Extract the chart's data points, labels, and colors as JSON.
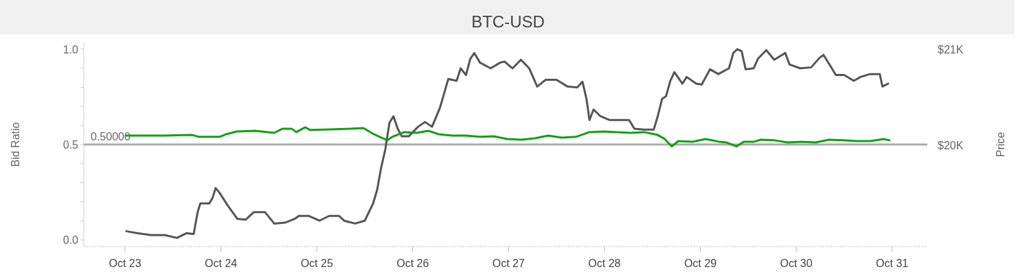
{
  "chart_data": {
    "type": "line",
    "title": "BTC-USD",
    "ylabel": "Bid Ratio",
    "y2label": "Price",
    "xlim": [
      "--10-22T13:40",
      "--10-31T08:50"
    ],
    "xticks": [
      {
        "value": "--10-23",
        "label": "Oct 23"
      },
      {
        "value": "--10-24",
        "label": "Oct 24"
      },
      {
        "value": "--10-25",
        "label": "Oct 25"
      },
      {
        "value": "--10-26",
        "label": "Oct 26"
      },
      {
        "value": "--10-27",
        "label": "Oct 27"
      },
      {
        "value": "--10-28",
        "label": "Oct 28"
      },
      {
        "value": "--10-29",
        "label": "Oct 29"
      },
      {
        "value": "--10-30",
        "label": "Oct 30"
      },
      {
        "value": "--10-31",
        "label": "Oct 31"
      }
    ],
    "ylim": [
      -0.035,
      1.035
    ],
    "yticks": [
      {
        "value": 0,
        "label": "0.0"
      },
      {
        "value": 0.1,
        "label": null
      },
      {
        "value": 0.2,
        "label": null
      },
      {
        "value": 0.3,
        "label": null
      },
      {
        "value": 0.4,
        "label": null
      },
      {
        "value": 0.5,
        "label": "0.5"
      },
      {
        "value": 0.6,
        "label": null
      },
      {
        "value": 0.7,
        "label": null
      },
      {
        "value": 0.8,
        "label": null
      },
      {
        "value": 0.9,
        "label": null
      },
      {
        "value": 1,
        "label": "1.0"
      }
    ],
    "y2lim": [
      18940,
      21070
    ],
    "y2ticks": [
      {
        "value": 20000,
        "label": "$20K"
      },
      {
        "value": 21000,
        "label": "$21K"
      }
    ],
    "ref_lines": [
      {
        "axis": "y",
        "value": 0.5,
        "label": "0.50000",
        "color": "#aaaaaa"
      }
    ],
    "series": [
      {
        "color": "#555555",
        "axis": "y2",
        "x": [
          "--10-23T00:20",
          "--10-23T03:05",
          "--10-23T06:30",
          "--10-23T09:55",
          "--10-23T13:00",
          "--10-23T15:25",
          "--10-23T17:10",
          "--10-23T18:10",
          "--10-23T18:50",
          "--10-23T21:05",
          "--10-23T21:55",
          "--10-23T22:40",
          "--10-23T23:40",
          "--10-24T01:40",
          "--10-24T04:05",
          "--10-24T06:10",
          "--10-24T08:15",
          "--10-24T11:00",
          "--10-24T13:20",
          "--10-24T16:05",
          "--10-24T18:30",
          "--10-24T19:30",
          "--10-24T21:55",
          "--10-25T00:40",
          "--10-25T03:05",
          "--10-25T05:30",
          "--10-25T06:50",
          "--10-25T09:35",
          "--10-25T12:00",
          "--10-25T14:05",
          "--10-25T15:05",
          "--10-25T16:05",
          "--10-25T17:10",
          "--10-25T18:10",
          "--10-25T19:10",
          "--10-25T20:15",
          "--10-25T21:15",
          "--10-25T23:00",
          "--10-26T01:20",
          "--10-26T03:05",
          "--10-26T04:50",
          "--10-26T06:50",
          "--10-26T08:55",
          "--10-26T11:00",
          "--10-26T12:00",
          "--10-26T13:20",
          "--10-26T14:25",
          "--10-26T15:25",
          "--10-26T16:50",
          "--10-26T19:30",
          "--10-26T21:55",
          "--10-26T23:00",
          "--10-27T01:00",
          "--10-27T03:05",
          "--10-27T05:10",
          "--10-27T07:10",
          "--10-27T09:15",
          "--10-27T12:00",
          "--10-27T14:45",
          "--10-27T17:10",
          "--10-27T18:30",
          "--10-27T19:30",
          "--10-27T20:15",
          "--10-27T21:15",
          "--10-27T23:00",
          "--10-28T01:20",
          "--10-28T04:05",
          "--10-28T06:10",
          "--10-28T07:30",
          "--10-28T09:55",
          "--10-28T12:20",
          "--10-28T13:20",
          "--10-28T14:25",
          "--10-28T15:25",
          "--10-28T16:30",
          "--10-28T17:30",
          "--10-28T19:30",
          "--10-28T20:35",
          "--10-28T23:00",
          "--10-29T00:20",
          "--10-29T02:25",
          "--10-29T04:30",
          "--10-29T07:10",
          "--10-29T08:15",
          "--10-29T09:15",
          "--10-29T10:20",
          "--10-29T11:20",
          "--10-29T13:20",
          "--10-29T14:25",
          "--10-29T16:30",
          "--10-29T18:30",
          "--10-29T21:15",
          "--10-29T22:20",
          "--10-30T01:00",
          "--10-30T03:45",
          "--10-30T05:50",
          "--10-30T06:50",
          "--10-30T08:55",
          "--10-30T09:55",
          "--10-30T12:00",
          "--10-30T14:25",
          "--10-30T16:05",
          "--10-30T18:30",
          "--10-30T20:55",
          "--10-30T21:35",
          "--10-30T23:00"
        ],
        "values": [
          19100,
          19080,
          19060,
          19060,
          19030,
          19080,
          19070,
          19300,
          19390,
          19390,
          19450,
          19550,
          19500,
          19370,
          19230,
          19220,
          19300,
          19300,
          19180,
          19190,
          19230,
          19260,
          19260,
          19210,
          19260,
          19260,
          19210,
          19180,
          19210,
          19390,
          19530,
          19760,
          19960,
          20230,
          20300,
          20170,
          20090,
          20090,
          20190,
          20240,
          20190,
          20390,
          20690,
          20670,
          20800,
          20730,
          20900,
          20960,
          20860,
          20800,
          20860,
          20870,
          20800,
          20890,
          20800,
          20610,
          20680,
          20680,
          20610,
          20600,
          20660,
          20480,
          20260,
          20370,
          20300,
          20260,
          20260,
          20260,
          20170,
          20160,
          20160,
          20300,
          20480,
          20510,
          20670,
          20760,
          20640,
          20710,
          20640,
          20630,
          20790,
          20740,
          20800,
          20960,
          21000,
          20980,
          20790,
          20800,
          20900,
          20990,
          20890,
          20960,
          20840,
          20800,
          20810,
          20910,
          20940,
          20800,
          20730,
          20730,
          20670,
          20710,
          20740,
          20740,
          20610,
          20640
        ]
      },
      {
        "color": "#11a011",
        "axis": "y",
        "x": [
          "--10-23T00:20",
          "--10-23T09:55",
          "--10-23T16:50",
          "--10-23T18:30",
          "--10-23T21:55",
          "--10-23T23:40",
          "--10-24T01:20",
          "--10-24T03:55",
          "--10-24T08:35",
          "--10-24T13:20",
          "--10-24T15:25",
          "--10-24T17:40",
          "--10-24T18:50",
          "--10-24T21:05",
          "--10-24T22:20",
          "--10-25T03:05",
          "--10-25T08:15",
          "--10-25T11:40",
          "--10-25T14:15",
          "--10-25T17:40",
          "--10-25T18:50",
          "--10-25T21:55",
          "--10-26T01:00",
          "--10-26T03:55",
          "--10-26T06:30",
          "--10-26T09:55",
          "--10-26T13:20",
          "--10-26T16:50",
          "--10-26T20:15",
          "--10-26T23:40",
          "--10-27T03:05",
          "--10-27T06:30",
          "--10-27T09:55",
          "--10-27T13:20",
          "--10-27T16:50",
          "--10-27T20:15",
          "--10-27T23:40",
          "--10-28T03:05",
          "--10-28T06:30",
          "--10-28T09:55",
          "--10-28T13:20",
          "--10-28T15:05",
          "--10-28T16:50",
          "--10-28T18:30",
          "--10-28T21:55",
          "--10-29T01:20",
          "--10-29T04:50",
          "--10-29T06:30",
          "--10-29T09:05",
          "--10-29T10:50",
          "--10-29T13:20",
          "--10-29T15:05",
          "--10-29T18:30",
          "--10-29T21:55",
          "--10-30T01:20",
          "--10-30T04:50",
          "--10-30T08:15",
          "--10-30T11:40",
          "--10-30T15:05",
          "--10-30T18:30",
          "--10-30T21:55",
          "--10-30T23:20"
        ],
        "values": [
          0.547,
          0.547,
          0.55,
          0.54,
          0.54,
          0.54,
          0.554,
          0.568,
          0.572,
          0.561,
          0.583,
          0.583,
          0.565,
          0.59,
          0.576,
          0.579,
          0.583,
          0.586,
          0.554,
          0.522,
          0.54,
          0.565,
          0.561,
          0.572,
          0.554,
          0.547,
          0.547,
          0.54,
          0.543,
          0.529,
          0.525,
          0.532,
          0.547,
          0.536,
          0.54,
          0.565,
          0.568,
          0.565,
          0.561,
          0.565,
          0.55,
          0.529,
          0.49,
          0.518,
          0.514,
          0.529,
          0.514,
          0.511,
          0.49,
          0.514,
          0.514,
          0.525,
          0.522,
          0.511,
          0.514,
          0.511,
          0.525,
          0.522,
          0.518,
          0.518,
          0.529,
          0.522
        ]
      }
    ]
  }
}
